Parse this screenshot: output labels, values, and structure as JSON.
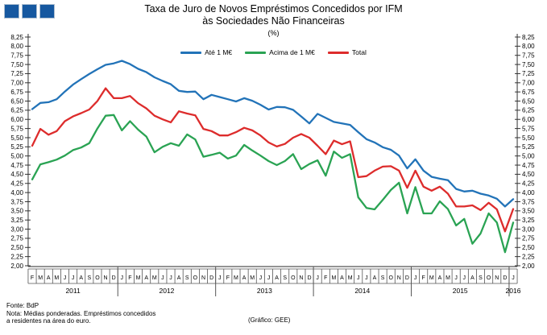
{
  "header": {
    "title_line1": "Taxa de Juro de Novos Empréstimos Concedidos por IFM",
    "title_line2": "às Sociedades Não Financeiras",
    "subtitle": "(%)"
  },
  "footer": {
    "source": "Fonte: BdP",
    "note_line1": "Nota: Médias ponderadas. Empréstimos concedidos",
    "note_line2": "a residentes na área do euro.",
    "credit": "(Gráfico: GEE)"
  },
  "logo": {
    "square_count": 3,
    "color": "#1658a0"
  },
  "chart_data": {
    "type": "line",
    "title": "Taxa de Juro de Novos Empréstimos Concedidos por IFM às Sociedades Não Financeiras",
    "ylabel": "(%)",
    "ylim": [
      2.0,
      8.25
    ],
    "ytick_step": 0.25,
    "grid": false,
    "legend_position": "top-center",
    "y_tick_labels": [
      "8,25",
      "8,00",
      "7,75",
      "7,50",
      "7,25",
      "7,00",
      "6,75",
      "6,50",
      "6,25",
      "6,00",
      "5,75",
      "5,50",
      "5,25",
      "5,00",
      "4,75",
      "4,50",
      "4,25",
      "4,00",
      "3,75",
      "3,50",
      "3,25",
      "3,00",
      "2,75",
      "2,50",
      "2,25",
      "2,00"
    ],
    "x_month_labels": [
      "F",
      "M",
      "A",
      "M",
      "J",
      "J",
      "A",
      "S",
      "O",
      "N",
      "D",
      "J",
      "F",
      "M",
      "A",
      "M",
      "J",
      "J",
      "A",
      "S",
      "O",
      "N",
      "D",
      "J",
      "F",
      "M",
      "A",
      "M",
      "J",
      "J",
      "A",
      "S",
      "O",
      "N",
      "D",
      "J",
      "F",
      "M",
      "A",
      "M",
      "J",
      "J",
      "A",
      "S",
      "O",
      "N",
      "D",
      "J",
      "F",
      "M",
      "A",
      "M",
      "J",
      "J",
      "A",
      "S",
      "O",
      "N",
      "D",
      "J"
    ],
    "years": [
      {
        "label": "2011",
        "start": 0,
        "end": 10
      },
      {
        "label": "2012",
        "start": 11,
        "end": 22
      },
      {
        "label": "2013",
        "start": 23,
        "end": 34
      },
      {
        "label": "2014",
        "start": 35,
        "end": 46
      },
      {
        "label": "2015",
        "start": 47,
        "end": 58
      },
      {
        "label": "2016",
        "start": 59,
        "end": 59
      }
    ],
    "series": [
      {
        "name": "Até 1 M€",
        "color": "#2273b8",
        "values": [
          6.28,
          6.45,
          6.47,
          6.55,
          6.76,
          6.95,
          7.1,
          7.24,
          7.37,
          7.49,
          7.53,
          7.6,
          7.51,
          7.38,
          7.29,
          7.15,
          7.05,
          6.96,
          6.78,
          6.75,
          6.76,
          6.55,
          6.67,
          6.61,
          6.55,
          6.49,
          6.58,
          6.51,
          6.4,
          6.27,
          6.34,
          6.33,
          6.26,
          6.08,
          5.89,
          6.15,
          6.04,
          5.93,
          5.89,
          5.85,
          5.65,
          5.46,
          5.37,
          5.24,
          5.17,
          5.01,
          4.66,
          4.91,
          4.6,
          4.43,
          4.38,
          4.34,
          4.1,
          4.03,
          4.05,
          3.97,
          3.92,
          3.83,
          3.62,
          3.82
        ]
      },
      {
        "name": "Acima de 1 M€",
        "color": "#2aa353",
        "values": [
          4.36,
          4.77,
          4.83,
          4.9,
          5.01,
          5.16,
          5.23,
          5.35,
          5.75,
          6.1,
          6.12,
          5.7,
          5.95,
          5.72,
          5.53,
          5.1,
          5.25,
          5.35,
          5.28,
          5.59,
          5.45,
          4.98,
          5.03,
          5.09,
          4.93,
          5.01,
          5.3,
          5.15,
          5.01,
          4.86,
          4.75,
          4.86,
          5.05,
          4.64,
          4.78,
          4.88,
          4.46,
          5.12,
          4.95,
          5.05,
          3.87,
          3.58,
          3.54,
          3.8,
          4.07,
          4.27,
          3.43,
          4.15,
          3.43,
          3.43,
          3.76,
          3.55,
          3.1,
          3.28,
          2.6,
          2.88,
          3.43,
          3.18,
          2.37,
          3.18
        ]
      },
      {
        "name": "Total",
        "color": "#dd2c2c",
        "values": [
          5.28,
          5.74,
          5.58,
          5.68,
          5.95,
          6.08,
          6.17,
          6.27,
          6.5,
          6.85,
          6.58,
          6.58,
          6.64,
          6.44,
          6.3,
          6.1,
          6.0,
          5.92,
          6.22,
          6.16,
          6.11,
          5.74,
          5.68,
          5.56,
          5.56,
          5.65,
          5.77,
          5.7,
          5.56,
          5.37,
          5.26,
          5.33,
          5.5,
          5.6,
          5.5,
          5.28,
          5.05,
          5.42,
          5.32,
          5.4,
          4.42,
          4.45,
          4.6,
          4.71,
          4.72,
          4.6,
          4.13,
          4.6,
          4.16,
          4.05,
          4.16,
          3.97,
          3.62,
          3.62,
          3.65,
          3.52,
          3.72,
          3.54,
          2.94,
          3.55
        ]
      }
    ]
  }
}
